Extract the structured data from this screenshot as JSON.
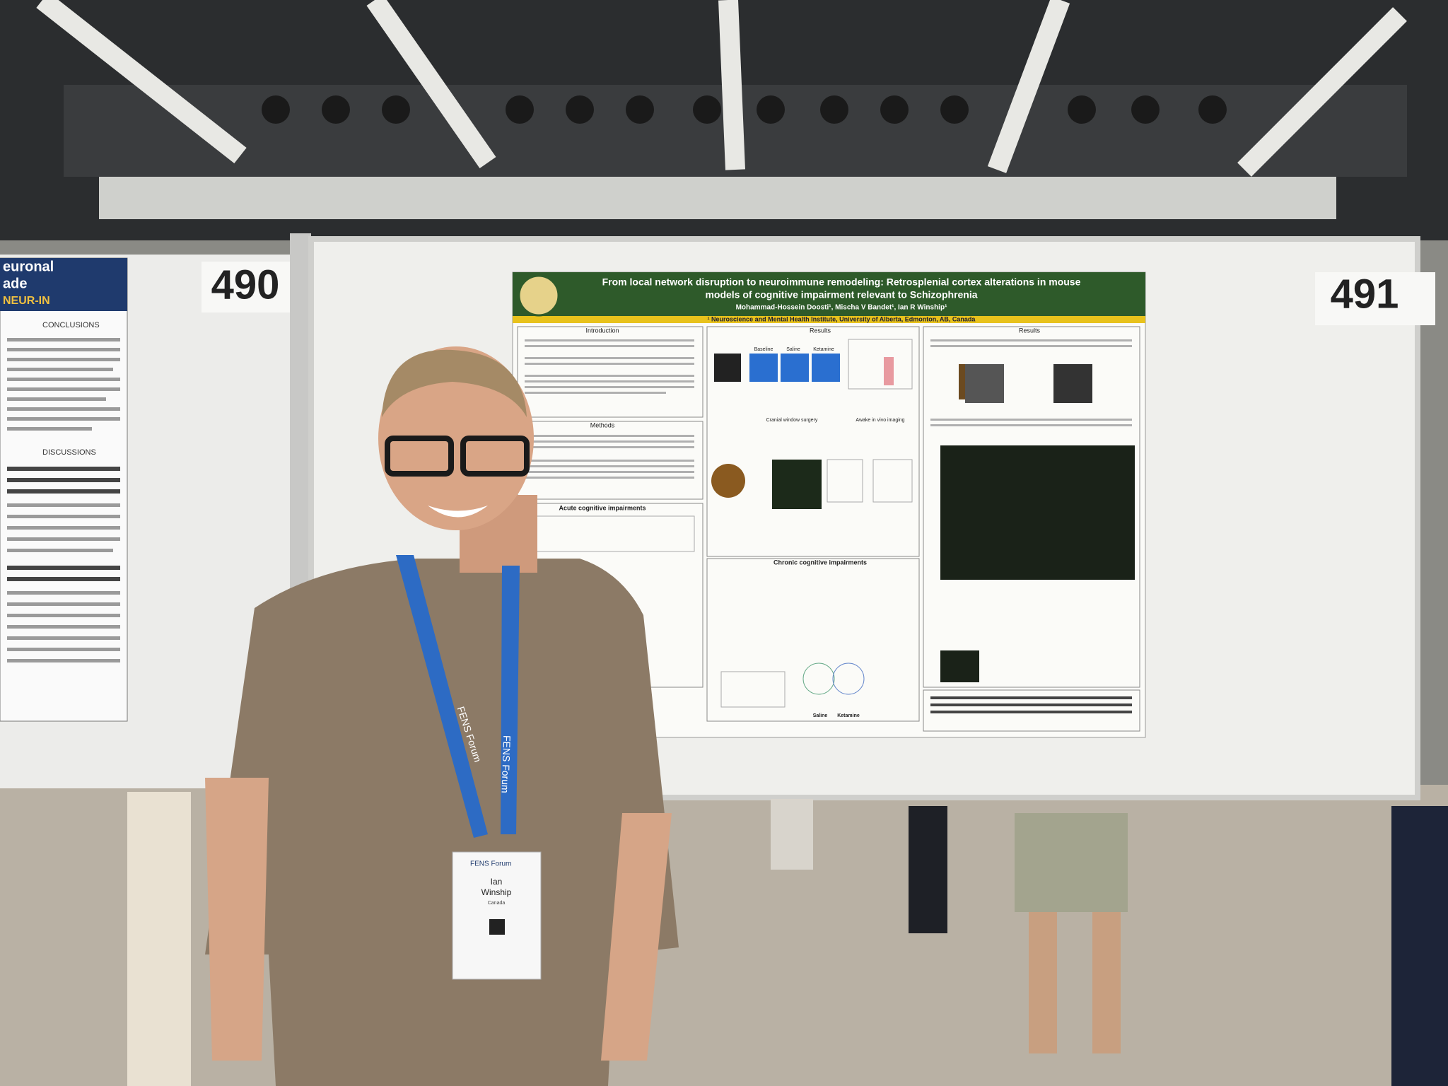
{
  "boards": {
    "left_number": "490",
    "right_number": "491"
  },
  "poster": {
    "title_lines": [
      "From local network disruption to neuroimmune remodeling: Retrosplenial cortex alterations in mouse",
      "models of cognitive impairment relevant to Schizophrenia"
    ],
    "authors": "Mohammad-Hossein Doosti¹, Mischa V Bandet¹, Ian R Winship¹",
    "affiliation": "¹ Neuroscience and Mental Health Institute, University of Alberta, Edmonton, AB, Canada",
    "sections": [
      "Introduction",
      "Methods",
      "Acute cognitive impairments",
      "Results",
      "Chronic cognitive impairments",
      "Results"
    ],
    "figure_labels": [
      "Baseline",
      "Saline",
      "Ketamine",
      "Cranial window surgery",
      "Awake in vivo imaging",
      "Saline",
      "Ketamine"
    ]
  },
  "left_poster": {
    "headings": [
      "euronal",
      "ade",
      "NEUR-IN"
    ],
    "sections": [
      "CONCLUSIONS",
      "DISCUSSIONS"
    ]
  },
  "lanyard": {
    "text": "FENS Forum"
  },
  "badge": {
    "event": "FENS Forum",
    "first_name": "Ian",
    "last_name": "Winship",
    "country": "Canada"
  }
}
